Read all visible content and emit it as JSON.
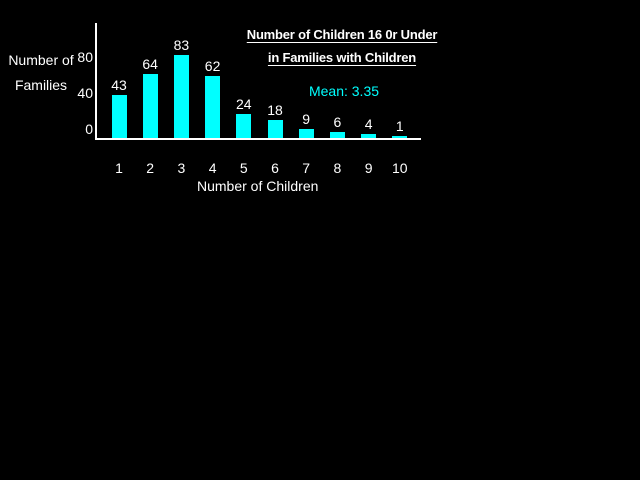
{
  "canvas": {
    "background": "#000000"
  },
  "chart_data": {
    "type": "bar",
    "title_line1": "Number of Children 16 0r Under",
    "title_line2": "in Families with Children",
    "categories": [
      "1",
      "2",
      "3",
      "4",
      "5",
      "6",
      "7",
      "8",
      "9",
      "10"
    ],
    "values": [
      43,
      64,
      83,
      62,
      24,
      18,
      9,
      6,
      4,
      1
    ],
    "xlabel": "Number of Children",
    "ylabel_line1": "Number of",
    "ylabel_line2": "Families",
    "y_ticks": [
      "80",
      "40",
      "0"
    ],
    "ylim": [
      0,
      90
    ],
    "annotation": "Mean: 3.35",
    "mean": 3.35,
    "bar_color": "#00FFFF",
    "axis_color": "#FFFFFF",
    "text_color": "#FFFFFF",
    "annotation_color": "#00FFFF",
    "grid": false,
    "legend": "none"
  }
}
